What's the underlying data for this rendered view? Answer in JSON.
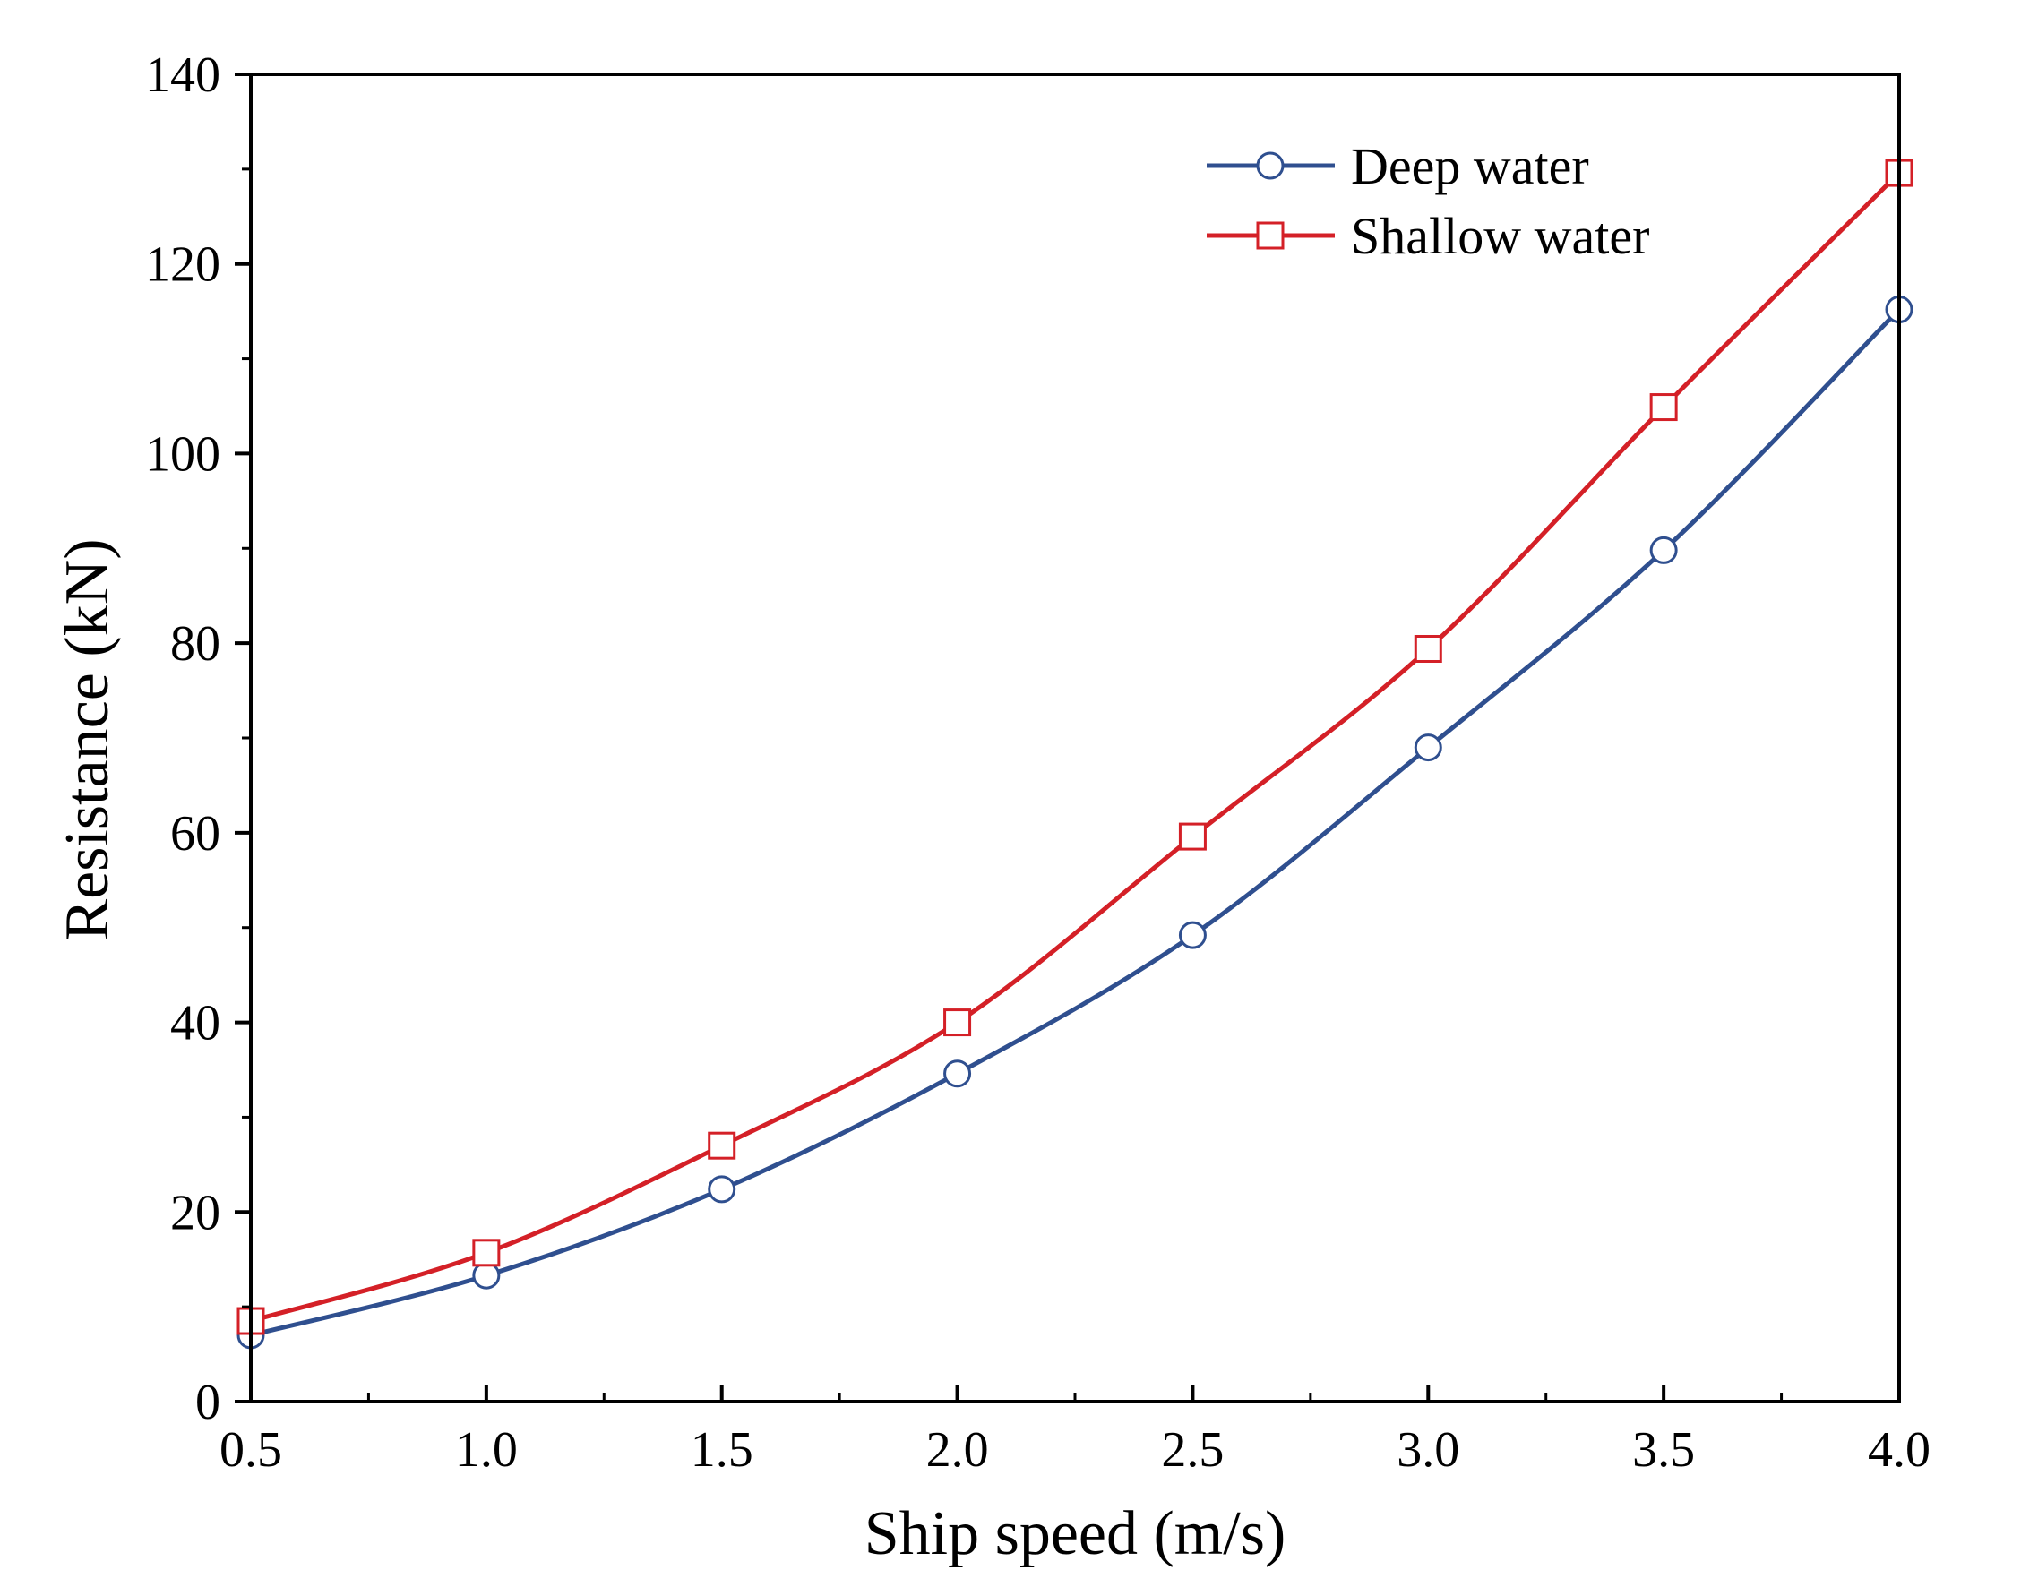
{
  "chart_data": {
    "type": "line",
    "title": "",
    "xlabel": "Ship speed (m/s)",
    "ylabel": "Resistance (kN)",
    "xlim": [
      0.5,
      4.0
    ],
    "ylim": [
      0,
      140
    ],
    "x_ticks": [
      0.5,
      1.0,
      1.5,
      2.0,
      2.5,
      3.0,
      3.5,
      4.0
    ],
    "x_tick_labels": [
      "0.5",
      "1.0",
      "1.5",
      "2.0",
      "2.5",
      "3.0",
      "3.5",
      "4.0"
    ],
    "y_ticks": [
      0,
      20,
      40,
      60,
      80,
      100,
      120,
      140
    ],
    "y_tick_labels": [
      "0",
      "20",
      "40",
      "60",
      "80",
      "100",
      "120",
      "140"
    ],
    "grid": false,
    "legend_position": "top-right",
    "x": [
      0.5,
      1.0,
      1.5,
      2.0,
      2.5,
      3.0,
      3.5,
      4.0
    ],
    "series": [
      {
        "name": "Deep water",
        "marker": "circle",
        "color": "#2f4f8f",
        "values": [
          7.0,
          13.3,
          22.4,
          34.6,
          49.2,
          69.0,
          89.8,
          115.2
        ]
      },
      {
        "name": "Shallow water",
        "marker": "square",
        "color": "#d42027",
        "values": [
          8.5,
          15.7,
          27.0,
          40.0,
          59.6,
          79.4,
          104.9,
          129.6
        ]
      }
    ]
  }
}
